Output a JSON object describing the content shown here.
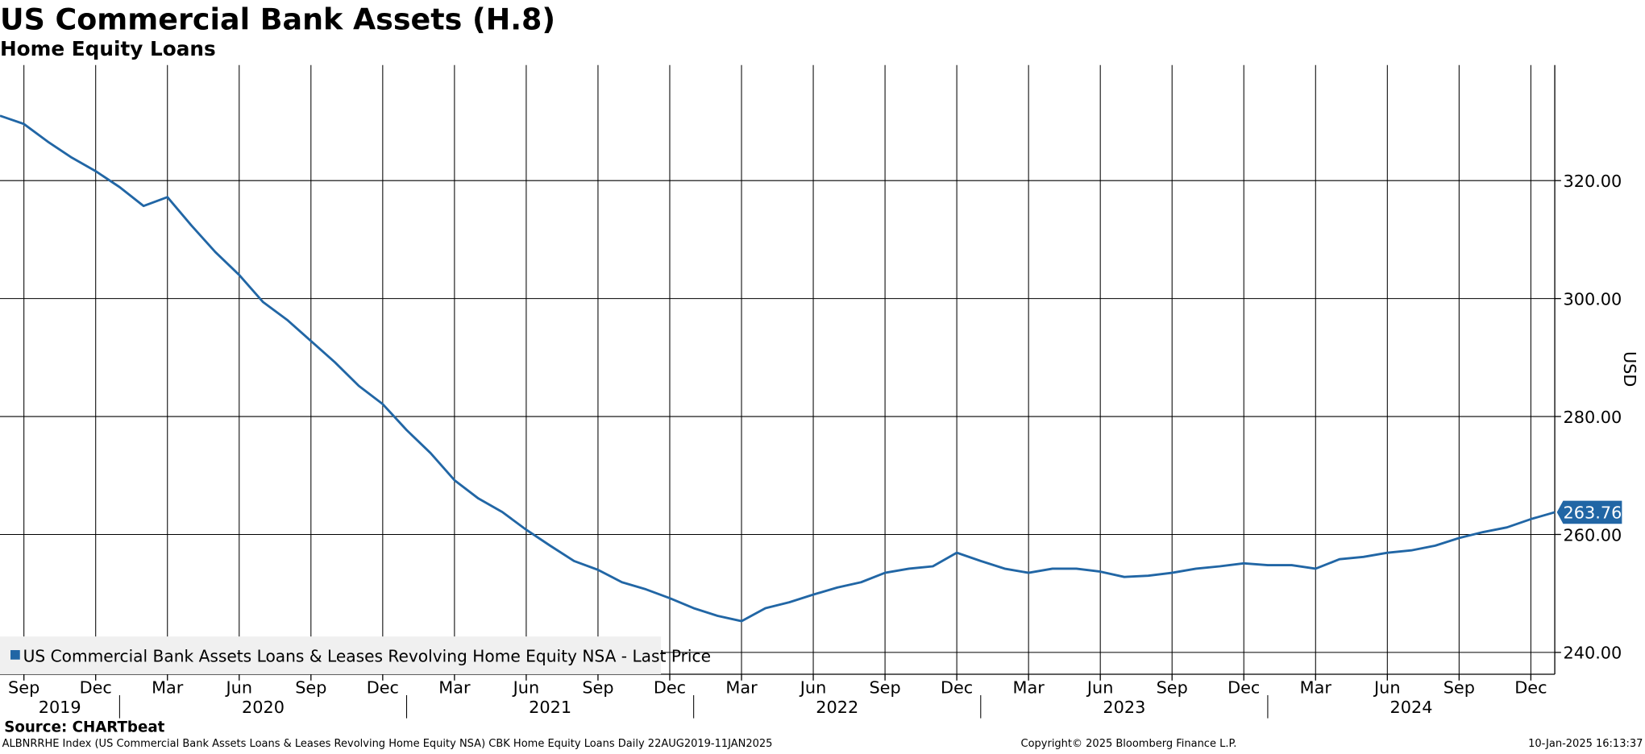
{
  "chart_data": {
    "type": "line",
    "title": "US Commercial Bank Assets (H.8)",
    "subtitle": "Home Equity Loans",
    "y_label": "USD",
    "source": "Source: CHARTbeat",
    "footer_left": "ALBNRRHE Index (US Commercial Bank Assets Loans & Leases Revolving Home Equity NSA) CBK Home Equity Loans  Daily 22AUG2019-11JAN2025",
    "footer_center": "Copyright© 2025 Bloomberg Finance L.P.",
    "footer_right": "10-Jan-2025 16:13:37",
    "x": [
      "2019-08",
      "2019-09",
      "2019-10",
      "2019-11",
      "2019-12",
      "2020-01",
      "2020-02",
      "2020-03",
      "2020-04",
      "2020-05",
      "2020-06",
      "2020-07",
      "2020-08",
      "2020-09",
      "2020-10",
      "2020-11",
      "2020-12",
      "2021-01",
      "2021-02",
      "2021-03",
      "2021-04",
      "2021-05",
      "2021-06",
      "2021-07",
      "2021-08",
      "2021-09",
      "2021-10",
      "2021-11",
      "2021-12",
      "2022-01",
      "2022-02",
      "2022-03",
      "2022-04",
      "2022-05",
      "2022-06",
      "2022-07",
      "2022-08",
      "2022-09",
      "2022-10",
      "2022-11",
      "2022-12",
      "2023-01",
      "2023-02",
      "2023-03",
      "2023-04",
      "2023-05",
      "2023-06",
      "2023-07",
      "2023-08",
      "2023-09",
      "2023-10",
      "2023-11",
      "2023-12",
      "2024-01",
      "2024-02",
      "2024-03",
      "2024-04",
      "2024-05",
      "2024-06",
      "2024-07",
      "2024-08",
      "2024-09",
      "2024-10",
      "2024-11",
      "2024-12",
      "2025-01"
    ],
    "series": [
      {
        "name": "US Commercial Bank Assets Loans & Leases Revolving Home Equity NSA - Last Price",
        "color": "#2166a5",
        "values": [
          331.0,
          329.6,
          326.6,
          323.9,
          321.6,
          318.9,
          315.7,
          317.2,
          312.4,
          307.9,
          304.0,
          299.4,
          296.4,
          292.8,
          289.2,
          285.2,
          282.1,
          277.7,
          273.8,
          269.2,
          266.1,
          263.8,
          260.8,
          258.1,
          255.5,
          254.0,
          251.9,
          250.7,
          249.2,
          247.5,
          246.2,
          245.3,
          247.5,
          248.5,
          249.8,
          251.0,
          251.9,
          253.5,
          254.2,
          254.6,
          256.9,
          255.5,
          254.2,
          253.5,
          254.2,
          254.2,
          253.7,
          252.8,
          253.0,
          253.5,
          254.2,
          254.6,
          255.1,
          254.8,
          254.8,
          254.2,
          255.8,
          256.2,
          256.9,
          257.3,
          258.1,
          259.4,
          260.4,
          261.2,
          262.6,
          263.76
        ]
      }
    ],
    "xlim": [
      "2019-08",
      "2025-01"
    ],
    "xticks": [
      {
        "value": "2019-09",
        "label": "Sep"
      },
      {
        "value": "2019-12",
        "label": "Dec"
      },
      {
        "value": "2020-03",
        "label": "Mar"
      },
      {
        "value": "2020-06",
        "label": "Jun"
      },
      {
        "value": "2020-09",
        "label": "Sep"
      },
      {
        "value": "2020-12",
        "label": "Dec"
      },
      {
        "value": "2021-03",
        "label": "Mar"
      },
      {
        "value": "2021-06",
        "label": "Jun"
      },
      {
        "value": "2021-09",
        "label": "Sep"
      },
      {
        "value": "2021-12",
        "label": "Dec"
      },
      {
        "value": "2022-03",
        "label": "Mar"
      },
      {
        "value": "2022-06",
        "label": "Jun"
      },
      {
        "value": "2022-09",
        "label": "Sep"
      },
      {
        "value": "2022-12",
        "label": "Dec"
      },
      {
        "value": "2023-03",
        "label": "Mar"
      },
      {
        "value": "2023-06",
        "label": "Jun"
      },
      {
        "value": "2023-09",
        "label": "Sep"
      },
      {
        "value": "2023-12",
        "label": "Dec"
      },
      {
        "value": "2024-03",
        "label": "Mar"
      },
      {
        "value": "2024-06",
        "label": "Jun"
      },
      {
        "value": "2024-09",
        "label": "Sep"
      },
      {
        "value": "2024-12",
        "label": "Dec"
      }
    ],
    "years": [
      "2019",
      "2020",
      "2021",
      "2022",
      "2023",
      "2024"
    ],
    "ylim": [
      236.3,
      339.6
    ],
    "yticks": [
      {
        "value": 240,
        "label": "240.00"
      },
      {
        "value": 260,
        "label": "260.00"
      },
      {
        "value": 280,
        "label": "280.00"
      },
      {
        "value": 300,
        "label": "300.00"
      },
      {
        "value": 320,
        "label": "320.00"
      }
    ],
    "grid": true
  }
}
